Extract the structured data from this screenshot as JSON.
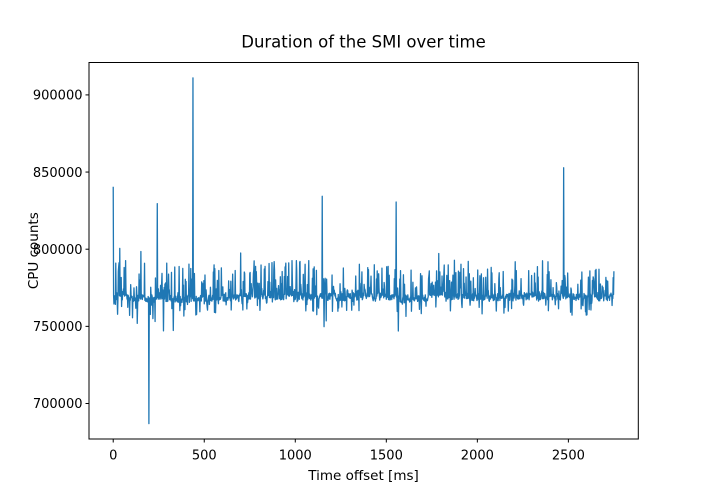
{
  "figure": {
    "background": "#ffffff",
    "frame_color": "#000000"
  },
  "chart_data": {
    "type": "line",
    "title": "Duration of the SMI over time",
    "xlabel": "Time offset [ms]",
    "ylabel": "CPU counts",
    "x_ticks": [
      0,
      500,
      1000,
      1500,
      2000,
      2500
    ],
    "y_ticks": [
      700000,
      750000,
      800000,
      850000,
      900000
    ],
    "xlim": [
      -133,
      2884
    ],
    "ylim": [
      677000,
      921000
    ],
    "x_range_ms": [
      0,
      2750
    ],
    "sample_step_ms": 2,
    "grid": false,
    "legend": "none",
    "line_color": "#1f77b4",
    "line_width": 1.3,
    "baseline_core": 769000,
    "noise_segments": [
      [
        0,
        80,
        752000,
        769500,
        801000,
        0.35
      ],
      [
        80,
        190,
        748000,
        768500,
        797000,
        0.3
      ],
      [
        190,
        260,
        752000,
        768000,
        790000,
        0.3
      ],
      [
        260,
        440,
        747000,
        768000,
        791000,
        0.3
      ],
      [
        440,
        700,
        757000,
        768500,
        791000,
        0.32
      ],
      [
        700,
        1100,
        760000,
        769500,
        793000,
        0.45
      ],
      [
        1100,
        1310,
        750000,
        769000,
        791000,
        0.32
      ],
      [
        1310,
        1555,
        760000,
        769500,
        791000,
        0.35
      ],
      [
        1555,
        1735,
        755000,
        768000,
        787000,
        0.25
      ],
      [
        1735,
        1955,
        760000,
        770000,
        797500,
        0.5
      ],
      [
        1955,
        2205,
        758000,
        769000,
        789000,
        0.3
      ],
      [
        2205,
        2465,
        760000,
        769500,
        793000,
        0.35
      ],
      [
        2465,
        2750,
        755000,
        769000,
        788000,
        0.3
      ]
    ],
    "spikes": [
      [
        0,
        840500
      ],
      [
        35,
        800500
      ],
      [
        151,
        798500
      ],
      [
        196,
        687000
      ],
      [
        242,
        829500
      ],
      [
        437,
        911000
      ],
      [
        700,
        797500
      ],
      [
        1147,
        834300
      ],
      [
        1158,
        749800
      ],
      [
        1553,
        830600
      ],
      [
        1566,
        747000
      ],
      [
        1787,
        797200
      ],
      [
        2473,
        852800
      ],
      [
        2520,
        757300
      ],
      [
        2601,
        757500
      ]
    ]
  }
}
